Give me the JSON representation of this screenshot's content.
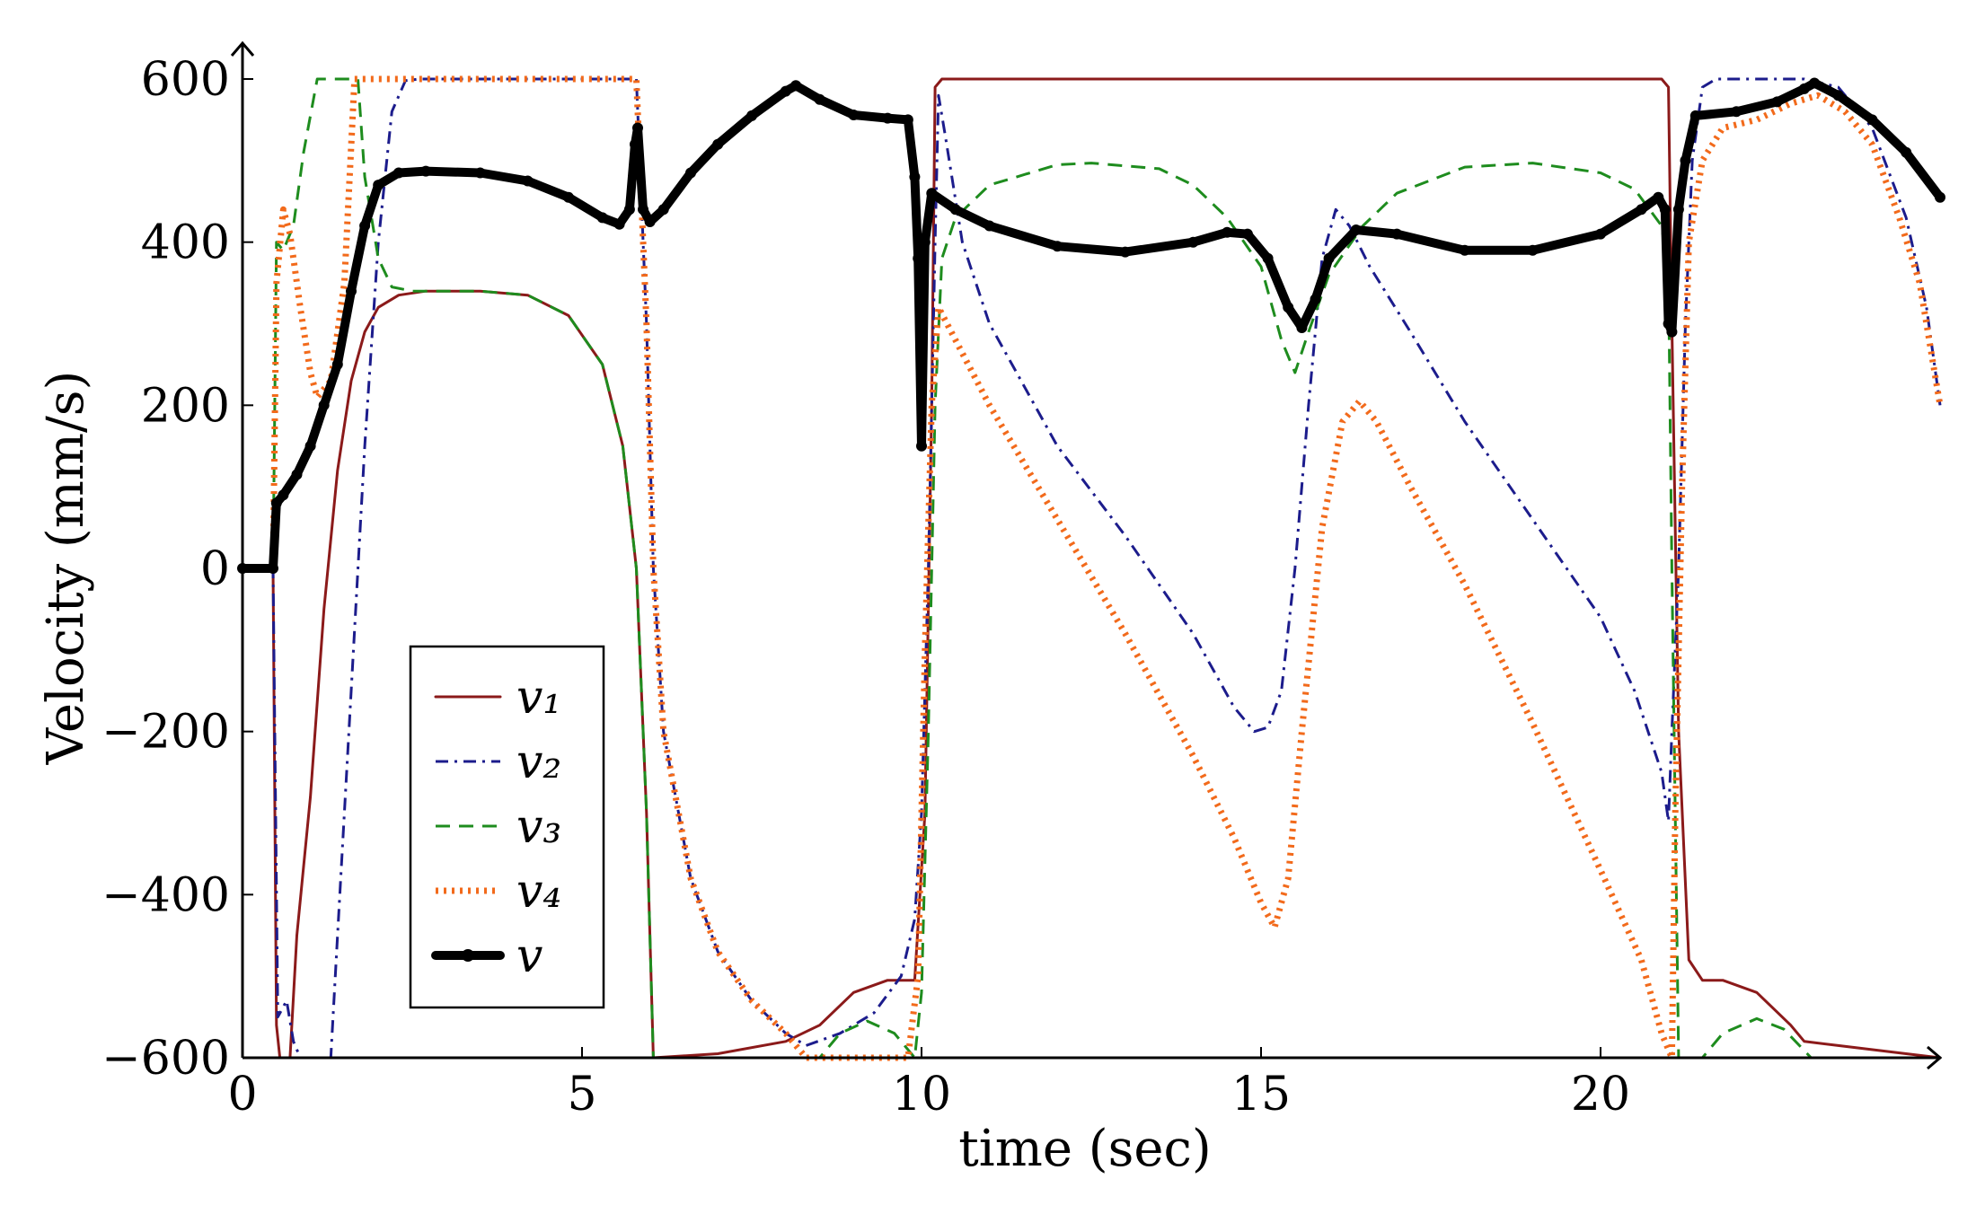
{
  "chart_data": {
    "type": "line",
    "xlabel": "time (sec)",
    "ylabel": "Velocity (mm/s)",
    "xlim": [
      0,
      25
    ],
    "ylim": [
      -600,
      600
    ],
    "xticks": [
      0,
      5,
      10,
      15,
      20
    ],
    "yticks": [
      -600,
      -400,
      -200,
      0,
      200,
      400,
      600
    ],
    "xtick_labels": [
      "0",
      "5",
      "10",
      "15",
      "20"
    ],
    "ytick_labels": [
      "−600",
      "−400",
      "−200",
      "0",
      "200",
      "400",
      "600"
    ],
    "legend_position": "bottom-left",
    "series": [
      {
        "name": "v1",
        "label": "v₁",
        "color": "#8b1a1a",
        "style": "solid",
        "points": [
          [
            0,
            0
          ],
          [
            0.45,
            0
          ],
          [
            0.5,
            -560
          ],
          [
            0.55,
            -600
          ],
          [
            0.7,
            -600
          ],
          [
            0.8,
            -450
          ],
          [
            1.0,
            -280
          ],
          [
            1.2,
            -50
          ],
          [
            1.4,
            120
          ],
          [
            1.6,
            230
          ],
          [
            1.8,
            290
          ],
          [
            2.0,
            320
          ],
          [
            2.3,
            335
          ],
          [
            2.7,
            340
          ],
          [
            3.5,
            340
          ],
          [
            4.2,
            335
          ],
          [
            4.8,
            310
          ],
          [
            5.3,
            250
          ],
          [
            5.6,
            150
          ],
          [
            5.8,
            0
          ],
          [
            5.95,
            -300
          ],
          [
            6.05,
            -600
          ],
          [
            7.0,
            -595
          ],
          [
            8.0,
            -580
          ],
          [
            8.5,
            -560
          ],
          [
            9.0,
            -520
          ],
          [
            9.5,
            -505
          ],
          [
            9.9,
            -505
          ],
          [
            10.05,
            -300
          ],
          [
            10.15,
            200
          ],
          [
            10.2,
            590
          ],
          [
            10.3,
            600
          ],
          [
            20.9,
            600
          ],
          [
            21.0,
            590
          ],
          [
            21.05,
            300
          ],
          [
            21.15,
            -200
          ],
          [
            21.3,
            -480
          ],
          [
            21.5,
            -505
          ],
          [
            21.8,
            -505
          ],
          [
            22.3,
            -520
          ],
          [
            22.8,
            -560
          ],
          [
            23.0,
            -580
          ],
          [
            23.5,
            -585
          ],
          [
            24.5,
            -595
          ],
          [
            25,
            -600
          ]
        ]
      },
      {
        "name": "v2",
        "label": "v₂",
        "color": "#1c1c8c",
        "style": "dashdot",
        "points": [
          [
            0,
            0
          ],
          [
            0.45,
            0
          ],
          [
            0.52,
            -550
          ],
          [
            0.65,
            -530
          ],
          [
            0.75,
            -580
          ],
          [
            0.85,
            -600
          ],
          [
            1.3,
            -600
          ],
          [
            1.4,
            -450
          ],
          [
            1.6,
            -150
          ],
          [
            1.8,
            150
          ],
          [
            2.0,
            400
          ],
          [
            2.2,
            560
          ],
          [
            2.4,
            598
          ],
          [
            2.6,
            600
          ],
          [
            5.8,
            600
          ],
          [
            5.95,
            300
          ],
          [
            6.05,
            0
          ],
          [
            6.2,
            -200
          ],
          [
            6.6,
            -380
          ],
          [
            7.0,
            -470
          ],
          [
            7.5,
            -530
          ],
          [
            8.0,
            -570
          ],
          [
            8.3,
            -585
          ],
          [
            8.8,
            -570
          ],
          [
            9.3,
            -545
          ],
          [
            9.7,
            -500
          ],
          [
            9.9,
            -430
          ],
          [
            10.0,
            -300
          ],
          [
            10.1,
            0
          ],
          [
            10.2,
            400
          ],
          [
            10.25,
            580
          ],
          [
            10.35,
            530
          ],
          [
            10.6,
            400
          ],
          [
            11.0,
            300
          ],
          [
            12.0,
            150
          ],
          [
            13.0,
            40
          ],
          [
            14.0,
            -80
          ],
          [
            14.6,
            -170
          ],
          [
            14.9,
            -200
          ],
          [
            15.1,
            -195
          ],
          [
            15.3,
            -150
          ],
          [
            15.5,
            0
          ],
          [
            15.7,
            200
          ],
          [
            15.9,
            380
          ],
          [
            16.1,
            440
          ],
          [
            16.3,
            420
          ],
          [
            16.6,
            370
          ],
          [
            17.2,
            290
          ],
          [
            18.0,
            180
          ],
          [
            19.0,
            60
          ],
          [
            20.0,
            -60
          ],
          [
            20.5,
            -150
          ],
          [
            20.9,
            -250
          ],
          [
            21.0,
            -310
          ],
          [
            21.05,
            -200
          ],
          [
            21.15,
            0
          ],
          [
            21.25,
            300
          ],
          [
            21.35,
            500
          ],
          [
            21.5,
            590
          ],
          [
            21.7,
            600
          ],
          [
            23.0,
            600
          ],
          [
            23.5,
            590
          ],
          [
            24.0,
            540
          ],
          [
            24.5,
            430
          ],
          [
            24.8,
            320
          ],
          [
            25,
            200
          ]
        ]
      },
      {
        "name": "v3",
        "label": "v₃",
        "color": "#1e8c1e",
        "style": "dashed",
        "points": [
          [
            0,
            0
          ],
          [
            0.45,
            0
          ],
          [
            0.5,
            400
          ],
          [
            0.6,
            390
          ],
          [
            0.75,
            420
          ],
          [
            0.9,
            510
          ],
          [
            1.1,
            600
          ],
          [
            1.6,
            600
          ],
          [
            1.7,
            600
          ],
          [
            1.8,
            480
          ],
          [
            2.0,
            380
          ],
          [
            2.2,
            345
          ],
          [
            2.5,
            340
          ],
          [
            3.5,
            340
          ],
          [
            4.2,
            335
          ],
          [
            4.8,
            310
          ],
          [
            5.3,
            250
          ],
          [
            5.6,
            150
          ],
          [
            5.8,
            0
          ],
          [
            5.95,
            -300
          ],
          [
            6.05,
            -600
          ],
          [
            8.5,
            -600
          ],
          [
            8.8,
            -570
          ],
          [
            9.2,
            -555
          ],
          [
            9.6,
            -570
          ],
          [
            9.9,
            -600
          ],
          [
            10.0,
            -520
          ],
          [
            10.1,
            -200
          ],
          [
            10.2,
            200
          ],
          [
            10.3,
            380
          ],
          [
            10.5,
            430
          ],
          [
            11.0,
            470
          ],
          [
            12.0,
            495
          ],
          [
            12.5,
            497
          ],
          [
            13.5,
            490
          ],
          [
            14.0,
            470
          ],
          [
            14.5,
            430
          ],
          [
            15.0,
            370
          ],
          [
            15.3,
            280
          ],
          [
            15.5,
            240
          ],
          [
            15.7,
            290
          ],
          [
            16.0,
            360
          ],
          [
            16.5,
            420
          ],
          [
            17.0,
            460
          ],
          [
            18.0,
            492
          ],
          [
            19.0,
            497
          ],
          [
            20.0,
            485
          ],
          [
            20.5,
            465
          ],
          [
            20.9,
            420
          ],
          [
            21.0,
            360
          ],
          [
            21.05,
            0
          ],
          [
            21.15,
            -600
          ],
          [
            21.5,
            -600
          ],
          [
            21.8,
            -570
          ],
          [
            22.3,
            -552
          ],
          [
            22.7,
            -565
          ],
          [
            23.1,
            -600
          ],
          [
            25,
            -600
          ]
        ]
      },
      {
        "name": "v4",
        "label": "v₄",
        "color": "#f26a1b",
        "style": "dotted",
        "points": [
          [
            0,
            0
          ],
          [
            0.45,
            0
          ],
          [
            0.5,
            350
          ],
          [
            0.6,
            440
          ],
          [
            0.7,
            410
          ],
          [
            0.85,
            320
          ],
          [
            1.0,
            240
          ],
          [
            1.1,
            210
          ],
          [
            1.3,
            230
          ],
          [
            1.5,
            350
          ],
          [
            1.65,
            600
          ],
          [
            5.8,
            600
          ],
          [
            5.95,
            300
          ],
          [
            6.05,
            0
          ],
          [
            6.2,
            -200
          ],
          [
            6.6,
            -380
          ],
          [
            7.0,
            -470
          ],
          [
            7.5,
            -530
          ],
          [
            8.0,
            -570
          ],
          [
            8.3,
            -600
          ],
          [
            9.8,
            -600
          ],
          [
            9.95,
            -500
          ],
          [
            10.05,
            -100
          ],
          [
            10.15,
            200
          ],
          [
            10.25,
            320
          ],
          [
            10.5,
            280
          ],
          [
            11.0,
            200
          ],
          [
            12.0,
            60
          ],
          [
            13.0,
            -80
          ],
          [
            14.0,
            -230
          ],
          [
            14.6,
            -330
          ],
          [
            15.0,
            -410
          ],
          [
            15.2,
            -440
          ],
          [
            15.4,
            -380
          ],
          [
            15.6,
            -200
          ],
          [
            15.9,
            50
          ],
          [
            16.2,
            180
          ],
          [
            16.45,
            205
          ],
          [
            16.7,
            180
          ],
          [
            17.2,
            100
          ],
          [
            18.0,
            -20
          ],
          [
            19.0,
            -190
          ],
          [
            20.0,
            -370
          ],
          [
            20.6,
            -480
          ],
          [
            20.9,
            -570
          ],
          [
            21.05,
            -600
          ],
          [
            21.1,
            -300
          ],
          [
            21.2,
            100
          ],
          [
            21.3,
            400
          ],
          [
            21.5,
            500
          ],
          [
            21.8,
            540
          ],
          [
            22.3,
            550
          ],
          [
            22.8,
            570
          ],
          [
            23.2,
            580
          ],
          [
            23.6,
            560
          ],
          [
            24.0,
            520
          ],
          [
            24.4,
            430
          ],
          [
            24.7,
            350
          ],
          [
            25,
            200
          ]
        ]
      },
      {
        "name": "v",
        "label": "v",
        "color": "#000000",
        "style": "solid-markers",
        "points": [
          [
            0,
            0
          ],
          [
            0.45,
            0
          ],
          [
            0.5,
            80
          ],
          [
            0.6,
            90
          ],
          [
            0.8,
            115
          ],
          [
            1.0,
            150
          ],
          [
            1.2,
            200
          ],
          [
            1.4,
            250
          ],
          [
            1.6,
            340
          ],
          [
            1.8,
            420
          ],
          [
            2.0,
            470
          ],
          [
            2.3,
            485
          ],
          [
            2.7,
            487
          ],
          [
            3.5,
            485
          ],
          [
            4.2,
            475
          ],
          [
            4.8,
            455
          ],
          [
            5.3,
            430
          ],
          [
            5.55,
            422
          ],
          [
            5.7,
            440
          ],
          [
            5.78,
            520
          ],
          [
            5.82,
            540
          ],
          [
            5.9,
            440
          ],
          [
            6.0,
            425
          ],
          [
            6.2,
            440
          ],
          [
            6.6,
            485
          ],
          [
            7.0,
            520
          ],
          [
            7.5,
            555
          ],
          [
            8.0,
            585
          ],
          [
            8.15,
            592
          ],
          [
            8.5,
            575
          ],
          [
            9.0,
            556
          ],
          [
            9.5,
            552
          ],
          [
            9.8,
            550
          ],
          [
            9.9,
            480
          ],
          [
            9.95,
            380
          ],
          [
            10.0,
            150
          ],
          [
            10.05,
            400
          ],
          [
            10.15,
            460
          ],
          [
            10.5,
            440
          ],
          [
            11.0,
            420
          ],
          [
            12.0,
            395
          ],
          [
            13.0,
            388
          ],
          [
            14.0,
            400
          ],
          [
            14.5,
            412
          ],
          [
            14.8,
            410
          ],
          [
            15.1,
            380
          ],
          [
            15.4,
            320
          ],
          [
            15.6,
            295
          ],
          [
            15.8,
            330
          ],
          [
            16.0,
            380
          ],
          [
            16.4,
            415
          ],
          [
            17.0,
            410
          ],
          [
            18.0,
            390
          ],
          [
            19.0,
            390
          ],
          [
            20.0,
            410
          ],
          [
            20.6,
            440
          ],
          [
            20.85,
            455
          ],
          [
            20.95,
            440
          ],
          [
            21.0,
            300
          ],
          [
            21.05,
            290
          ],
          [
            21.15,
            440
          ],
          [
            21.25,
            500
          ],
          [
            21.4,
            555
          ],
          [
            22.0,
            560
          ],
          [
            22.6,
            572
          ],
          [
            23.0,
            588
          ],
          [
            23.15,
            595
          ],
          [
            23.5,
            580
          ],
          [
            24.0,
            550
          ],
          [
            24.5,
            510
          ],
          [
            25,
            455
          ]
        ]
      }
    ]
  }
}
